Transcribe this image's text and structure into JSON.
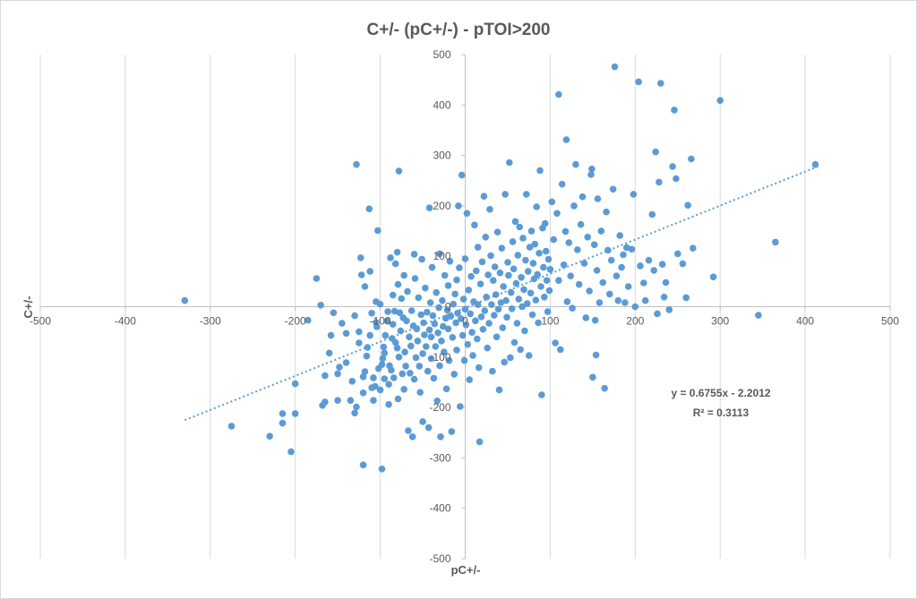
{
  "chart_data": {
    "type": "scatter",
    "title": "C+/- (pC+/-) - pTOI>200",
    "xlabel": "pC+/-",
    "ylabel": "C+/-",
    "xlim": [
      -500,
      500
    ],
    "ylim": [
      -500,
      500
    ],
    "x_ticks": [
      "-500",
      "-400",
      "-300",
      "-200",
      "-100",
      "0",
      "100",
      "200",
      "300",
      "400",
      "500"
    ],
    "y_ticks": [
      "-500",
      "-400",
      "-300",
      "-200",
      "-100",
      "0",
      "100",
      "200",
      "300",
      "400",
      "500"
    ],
    "grid": "vertical",
    "colors": {
      "points": "#5b9bd5",
      "trendline": "#5b9bd5",
      "grid": "#d9d9d9",
      "text": "#595959"
    },
    "trendline": {
      "type": "linear",
      "slope": 0.6755,
      "intercept": -2.2012,
      "x_range": [
        -330,
        415
      ],
      "equation": "y = 0.6755x - 2.2012",
      "r_squared": "R² = 0.3113"
    },
    "points": [
      [
        -330,
        12
      ],
      [
        -275,
        -237
      ],
      [
        -230,
        -257
      ],
      [
        -215,
        -212
      ],
      [
        -215,
        -231
      ],
      [
        -205,
        -288
      ],
      [
        -200,
        -153
      ],
      [
        -200,
        -212
      ],
      [
        -185,
        -27
      ],
      [
        -175,
        56
      ],
      [
        -170,
        3
      ],
      [
        -168,
        -196
      ],
      [
        -165,
        -189
      ],
      [
        -165,
        -137
      ],
      [
        -160,
        -92
      ],
      [
        -158,
        -57
      ],
      [
        -155,
        -12
      ],
      [
        -150,
        -186
      ],
      [
        -150,
        -133
      ],
      [
        -148,
        -120
      ],
      [
        -145,
        -33
      ],
      [
        -140,
        -111
      ],
      [
        -140,
        -53
      ],
      [
        -135,
        -186
      ],
      [
        -133,
        -148
      ],
      [
        -130,
        -18
      ],
      [
        -130,
        -211
      ],
      [
        -128,
        -199
      ],
      [
        -128,
        282
      ],
      [
        -125,
        -50
      ],
      [
        -125,
        -72
      ],
      [
        -123,
        97
      ],
      [
        -122,
        63
      ],
      [
        -120,
        -314
      ],
      [
        -120,
        -171
      ],
      [
        -120,
        -139
      ],
      [
        -118,
        -129
      ],
      [
        -118,
        40
      ],
      [
        -116,
        -98
      ],
      [
        -115,
        -81
      ],
      [
        -113,
        194
      ],
      [
        -112,
        70
      ],
      [
        -112,
        -57
      ],
      [
        -110,
        -13
      ],
      [
        -110,
        -161
      ],
      [
        -108,
        -186
      ],
      [
        -108,
        -141
      ],
      [
        -106,
        -158
      ],
      [
        -105,
        10
      ],
      [
        -105,
        -31
      ],
      [
        -104,
        -40
      ],
      [
        -103,
        151
      ],
      [
        -102,
        -123
      ],
      [
        -100,
        -165
      ],
      [
        -100,
        5
      ],
      [
        -98,
        -322
      ],
      [
        -98,
        -115
      ],
      [
        -97,
        -103
      ],
      [
        -96,
        -80
      ],
      [
        -95,
        -92
      ],
      [
        -95,
        -143
      ],
      [
        -94,
        -57
      ],
      [
        -92,
        -28
      ],
      [
        -91,
        -10
      ],
      [
        -90,
        -194
      ],
      [
        -90,
        -154
      ],
      [
        -89,
        -117
      ],
      [
        -88,
        97
      ],
      [
        -87,
        -126
      ],
      [
        -86,
        -63
      ],
      [
        -85,
        -35
      ],
      [
        -85,
        23
      ],
      [
        -84,
        -141
      ],
      [
        -83,
        -9
      ],
      [
        -82,
        85
      ],
      [
        -82,
        -71
      ],
      [
        -80,
        -82
      ],
      [
        -80,
        108
      ],
      [
        -79,
        -183
      ],
      [
        -79,
        44
      ],
      [
        -78,
        269
      ],
      [
        -78,
        -100
      ],
      [
        -77,
        -12
      ],
      [
        -76,
        -48
      ],
      [
        -75,
        16
      ],
      [
        -74,
        -133
      ],
      [
        -73,
        -22
      ],
      [
        -72,
        62
      ],
      [
        -72,
        -164
      ],
      [
        -71,
        -90
      ],
      [
        -70,
        -118
      ],
      [
        -69,
        -28
      ],
      [
        -68,
        30
      ],
      [
        -67,
        -246
      ],
      [
        -66,
        -60
      ],
      [
        -65,
        -132
      ],
      [
        -64,
        -78
      ],
      [
        -63,
        -8
      ],
      [
        -62,
        -258
      ],
      [
        -61,
        -38
      ],
      [
        -60,
        -144
      ],
      [
        -60,
        104
      ],
      [
        -59,
        56
      ],
      [
        -58,
        -101
      ],
      [
        -57,
        -44
      ],
      [
        -56,
        -68
      ],
      [
        -55,
        18
      ],
      [
        -54,
        -118
      ],
      [
        -53,
        -170
      ],
      [
        -52,
        -16
      ],
      [
        -51,
        94
      ],
      [
        -50,
        -93
      ],
      [
        -50,
        -228
      ],
      [
        -49,
        -32
      ],
      [
        -48,
        -56
      ],
      [
        -47,
        37
      ],
      [
        -46,
        -79
      ],
      [
        -45,
        -11
      ],
      [
        -44,
        -128
      ],
      [
        -43,
        -240
      ],
      [
        -42,
        196
      ],
      [
        -42,
        -46
      ],
      [
        -41,
        8
      ],
      [
        -40,
        -60
      ],
      [
        -40,
        -103
      ],
      [
        -39,
        78
      ],
      [
        -38,
        -18
      ],
      [
        -37,
        -142
      ],
      [
        -36,
        -34
      ],
      [
        -35,
        -79
      ],
      [
        -34,
        28
      ],
      [
        -33,
        -187
      ],
      [
        -32,
        -52
      ],
      [
        -31,
        -2
      ],
      [
        -30,
        105
      ],
      [
        -30,
        -117
      ],
      [
        -29,
        -258
      ],
      [
        -28,
        -68
      ],
      [
        -27,
        12
      ],
      [
        -26,
        -39
      ],
      [
        -25,
        -90
      ],
      [
        -24,
        62
      ],
      [
        -23,
        -23
      ],
      [
        -22,
        -163
      ],
      [
        -21,
        -7
      ],
      [
        -20,
        -44
      ],
      [
        -20,
        42
      ],
      [
        -19,
        -107
      ],
      [
        -18,
        90
      ],
      [
        -17,
        -19
      ],
      [
        -16,
        -248
      ],
      [
        -15,
        -61
      ],
      [
        -14,
        5
      ],
      [
        -13,
        -134
      ],
      [
        -12,
        25
      ],
      [
        -11,
        -32
      ],
      [
        -10,
        -86
      ],
      [
        -10,
        53
      ],
      [
        -9,
        -13
      ],
      [
        -8,
        200
      ],
      [
        -7,
        77
      ],
      [
        -6,
        -198
      ],
      [
        -5,
        -24
      ],
      [
        -4,
        261
      ],
      [
        -3,
        -57
      ],
      [
        -2,
        15
      ],
      [
        -1,
        -107
      ],
      [
        0,
        -5
      ],
      [
        0,
        95
      ],
      [
        1,
        -36
      ],
      [
        2,
        185
      ],
      [
        3,
        -75
      ],
      [
        4,
        33
      ],
      [
        5,
        -145
      ],
      [
        6,
        -14
      ],
      [
        7,
        60
      ],
      [
        8,
        -51
      ],
      [
        9,
        -97
      ],
      [
        10,
        10
      ],
      [
        11,
        162
      ],
      [
        12,
        -28
      ],
      [
        13,
        71
      ],
      [
        14,
        -64
      ],
      [
        15,
        118
      ],
      [
        15,
        4
      ],
      [
        16,
        -121
      ],
      [
        17,
        -268
      ],
      [
        18,
        45
      ],
      [
        19,
        -20
      ],
      [
        20,
        89
      ],
      [
        21,
        -45
      ],
      [
        22,
        219
      ],
      [
        23,
        -8
      ],
      [
        24,
        138
      ],
      [
        25,
        19
      ],
      [
        26,
        -82
      ],
      [
        27,
        63
      ],
      [
        28,
        -33
      ],
      [
        29,
        193
      ],
      [
        30,
        101
      ],
      [
        31,
        4
      ],
      [
        32,
        -128
      ],
      [
        33,
        52
      ],
      [
        34,
        -17
      ],
      [
        35,
        79
      ],
      [
        36,
        24
      ],
      [
        37,
        -60
      ],
      [
        38,
        148
      ],
      [
        39,
        -5
      ],
      [
        40,
        -165
      ],
      [
        41,
        67
      ],
      [
        42,
        8
      ],
      [
        43,
        116
      ],
      [
        44,
        -42
      ],
      [
        45,
        40
      ],
      [
        46,
        -110
      ],
      [
        47,
        223
      ],
      [
        48,
        12
      ],
      [
        49,
        -21
      ],
      [
        50,
        88
      ],
      [
        51,
        62
      ],
      [
        52,
        286
      ],
      [
        53,
        -101
      ],
      [
        54,
        28
      ],
      [
        55,
        -4
      ],
      [
        56,
        129
      ],
      [
        57,
        75
      ],
      [
        58,
        -71
      ],
      [
        59,
        169
      ],
      [
        60,
        46
      ],
      [
        61,
        -33
      ],
      [
        62,
        102
      ],
      [
        63,
        15
      ],
      [
        64,
        158
      ],
      [
        65,
        -85
      ],
      [
        66,
        58
      ],
      [
        67,
        0
      ],
      [
        68,
        136
      ],
      [
        69,
        34
      ],
      [
        70,
        -48
      ],
      [
        71,
        92
      ],
      [
        72,
        223
      ],
      [
        73,
        6
      ],
      [
        74,
        70
      ],
      [
        75,
        -97
      ],
      [
        76,
        118
      ],
      [
        77,
        27
      ],
      [
        78,
        150
      ],
      [
        79,
        -16
      ],
      [
        80,
        86
      ],
      [
        81,
        55
      ],
      [
        82,
        124
      ],
      [
        83,
        13
      ],
      [
        84,
        198
      ],
      [
        85,
        64
      ],
      [
        86,
        -32
      ],
      [
        87,
        106
      ],
      [
        88,
        270
      ],
      [
        89,
        40
      ],
      [
        90,
        -175
      ],
      [
        91,
        156
      ],
      [
        92,
        78
      ],
      [
        93,
        19
      ],
      [
        94,
        165
      ],
      [
        95,
        110
      ],
      [
        96,
        52
      ],
      [
        97,
        -10
      ],
      [
        98,
        94
      ],
      [
        99,
        32
      ],
      [
        100,
        74
      ],
      [
        102,
        208
      ],
      [
        104,
        133
      ],
      [
        106,
        -72
      ],
      [
        108,
        185
      ],
      [
        110,
        421
      ],
      [
        110,
        52
      ],
      [
        112,
        -85
      ],
      [
        114,
        243
      ],
      [
        116,
        83
      ],
      [
        118,
        149
      ],
      [
        119,
        331
      ],
      [
        120,
        10
      ],
      [
        122,
        127
      ],
      [
        124,
        61
      ],
      [
        126,
        -3
      ],
      [
        128,
        200
      ],
      [
        130,
        282
      ],
      [
        132,
        113
      ],
      [
        134,
        44
      ],
      [
        136,
        163
      ],
      [
        138,
        218
      ],
      [
        140,
        86
      ],
      [
        142,
        -22
      ],
      [
        144,
        138
      ],
      [
        146,
        31
      ],
      [
        148,
        262
      ],
      [
        149,
        273
      ],
      [
        150,
        -140
      ],
      [
        152,
        123
      ],
      [
        153,
        -27
      ],
      [
        154,
        -96
      ],
      [
        155,
        72
      ],
      [
        156,
        214
      ],
      [
        158,
        8
      ],
      [
        160,
        150
      ],
      [
        162,
        48
      ],
      [
        164,
        -162
      ],
      [
        166,
        188
      ],
      [
        168,
        112
      ],
      [
        170,
        25
      ],
      [
        172,
        92
      ],
      [
        174,
        233
      ],
      [
        176,
        476
      ],
      [
        178,
        61
      ],
      [
        180,
        12
      ],
      [
        182,
        141
      ],
      [
        184,
        78
      ],
      [
        186,
        103
      ],
      [
        188,
        8
      ],
      [
        190,
        117
      ],
      [
        192,
        40
      ],
      [
        196,
        114
      ],
      [
        198,
        223
      ],
      [
        200,
        0
      ],
      [
        204,
        446
      ],
      [
        206,
        81
      ],
      [
        210,
        47
      ],
      [
        212,
        12
      ],
      [
        216,
        92
      ],
      [
        220,
        183
      ],
      [
        222,
        72
      ],
      [
        224,
        307
      ],
      [
        226,
        -14
      ],
      [
        228,
        247
      ],
      [
        230,
        443
      ],
      [
        232,
        84
      ],
      [
        234,
        19
      ],
      [
        236,
        48
      ],
      [
        240,
        -6
      ],
      [
        244,
        278
      ],
      [
        246,
        390
      ],
      [
        248,
        254
      ],
      [
        250,
        105
      ],
      [
        256,
        85
      ],
      [
        262,
        201
      ],
      [
        266,
        293
      ],
      [
        268,
        116
      ],
      [
        292,
        59
      ],
      [
        300,
        409
      ],
      [
        345,
        -17
      ],
      [
        365,
        128
      ],
      [
        412,
        282
      ],
      [
        260,
        18
      ]
    ]
  }
}
